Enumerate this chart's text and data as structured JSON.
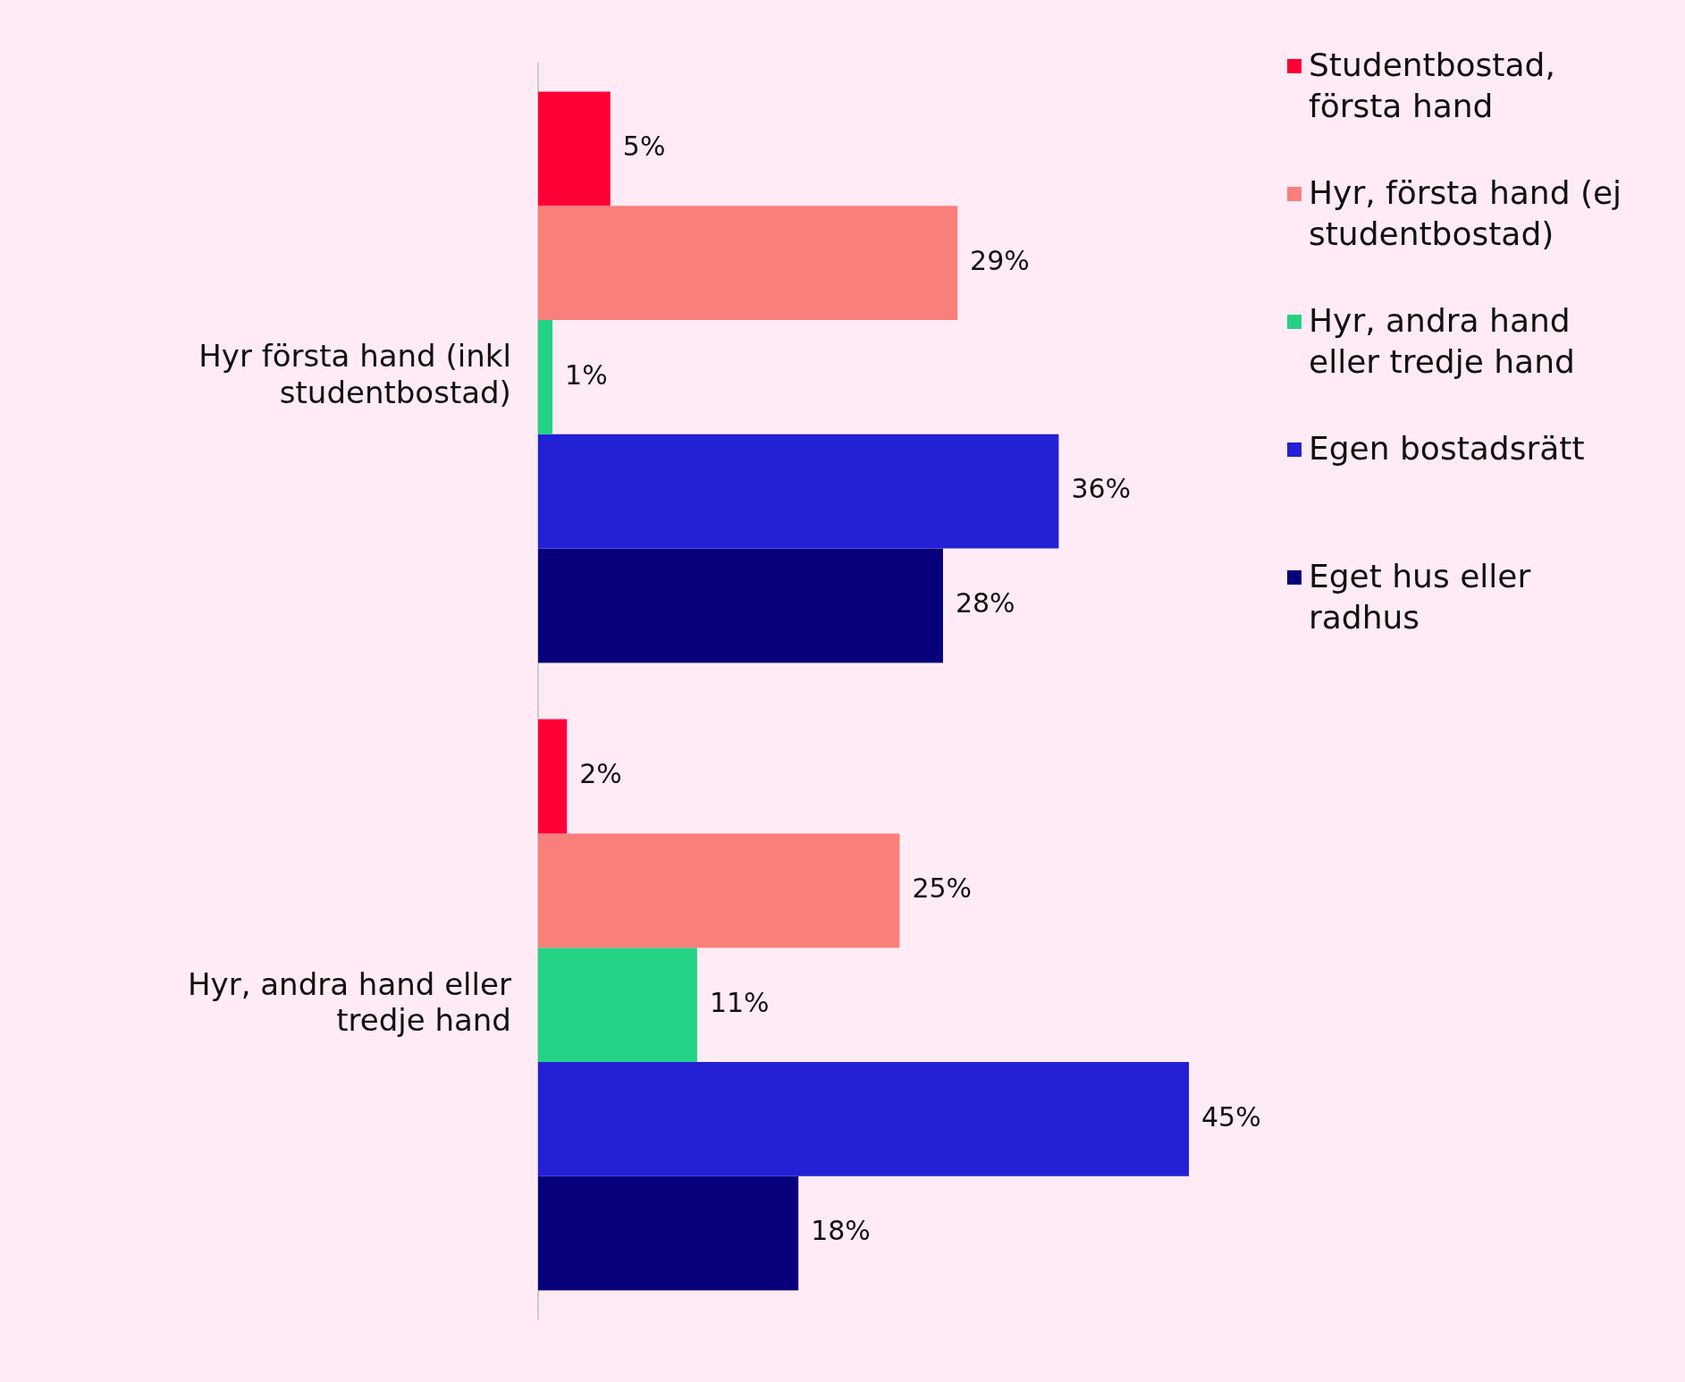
{
  "chart_data": {
    "type": "bar",
    "orientation": "horizontal",
    "categories": [
      "Hyr första hand (inkl studentbostad)",
      "Hyr, andra hand eller tredje hand"
    ],
    "series": [
      {
        "name": "Studentbostad, första hand",
        "color": "#ff0036",
        "values": [
          5,
          2
        ],
        "value_labels": [
          "5%",
          "2%"
        ]
      },
      {
        "name": "Hyr, första hand (ej studentbostad)",
        "color": "#f97f7b",
        "values": [
          29,
          25
        ],
        "value_labels": [
          "29%",
          "25%"
        ]
      },
      {
        "name": "Hyr, andra hand eller tredje hand",
        "color": "#24d286",
        "values": [
          1,
          11
        ],
        "value_labels": [
          "1%",
          "11%"
        ]
      },
      {
        "name": "Egen bostadsrätt",
        "color": "#2320d6",
        "values": [
          36,
          45
        ],
        "value_labels": [
          "36%",
          "45%"
        ]
      },
      {
        "name": "Eget hus eller radhus",
        "color": "#07007a",
        "values": [
          28,
          18
        ],
        "value_labels": [
          "28%",
          "18%"
        ]
      }
    ],
    "legend": "top right",
    "grid": false
  }
}
